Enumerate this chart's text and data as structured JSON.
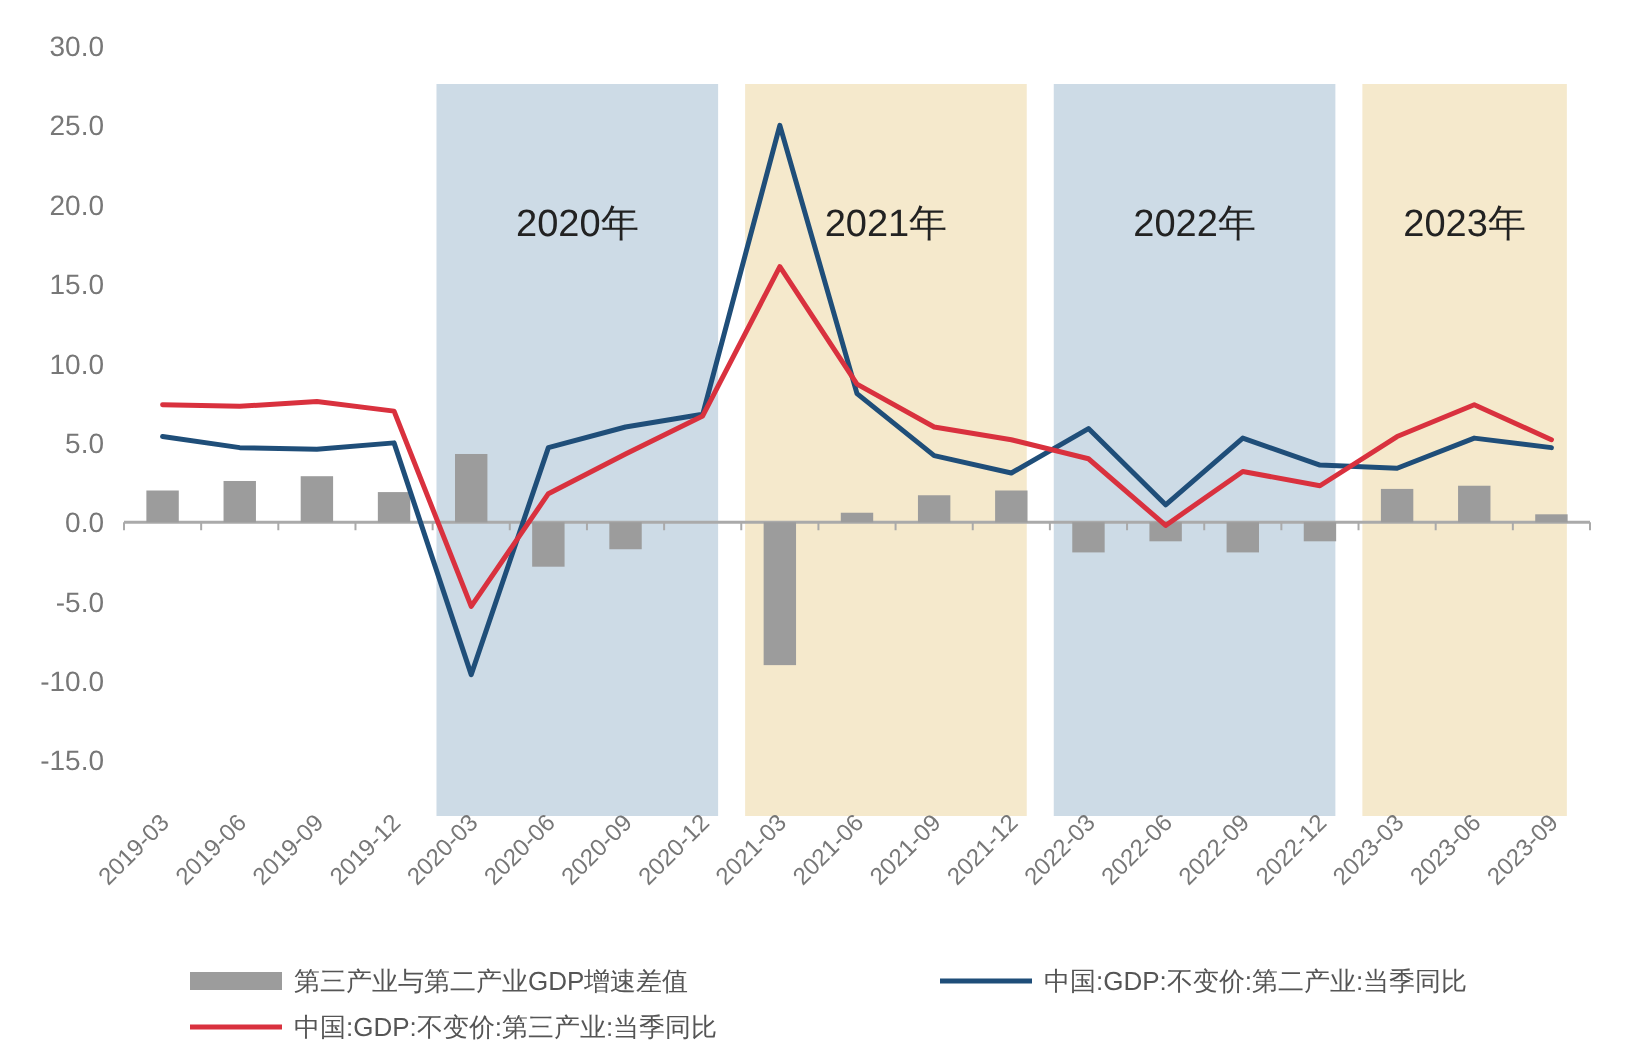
{
  "chart_data": {
    "type": "bar",
    "categories": [
      "2019-03",
      "2019-06",
      "2019-09",
      "2019-12",
      "2020-03",
      "2020-06",
      "2020-09",
      "2020-12",
      "2021-03",
      "2021-06",
      "2021-09",
      "2021-12",
      "2022-03",
      "2022-06",
      "2022-09",
      "2022-12",
      "2023-03",
      "2023-06",
      "2023-09"
    ],
    "series": [
      {
        "name": "第三产业与第二产业GDP增速差值",
        "color": "#9c9c9c",
        "values": [
          2.0,
          2.6,
          2.9,
          1.9,
          4.3,
          -2.8,
          -1.7,
          0.0,
          -9.0,
          0.6,
          1.7,
          2.0,
          -1.9,
          -1.2,
          -1.9,
          -1.2,
          2.1,
          2.3,
          0.5
        ]
      },
      {
        "name": "中国:GDP:不变价:第二产业:当季同比",
        "type": "line",
        "color": "#1f4e79",
        "values": [
          5.4,
          4.7,
          4.6,
          5.0,
          -9.6,
          4.7,
          6.0,
          6.8,
          25.0,
          8.1,
          4.2,
          3.1,
          5.9,
          1.1,
          5.3,
          3.6,
          3.4,
          5.3,
          4.7
        ]
      },
      {
        "name": "中国:GDP:不变价:第三产业:当季同比",
        "type": "line",
        "color": "#d9313e",
        "values": [
          7.4,
          7.3,
          7.6,
          7.0,
          -5.3,
          1.8,
          4.3,
          6.7,
          16.1,
          8.7,
          6.0,
          5.2,
          4.0,
          -0.2,
          3.2,
          2.3,
          5.4,
          7.4,
          5.2
        ]
      }
    ],
    "ylim": [
      -18,
      30
    ],
    "yticks": [
      {
        "value": -15,
        "label": "-15.0"
      },
      {
        "value": -10,
        "label": "-10.0"
      },
      {
        "value": -5,
        "label": "-5.0"
      },
      {
        "value": 0,
        "label": "0.0"
      },
      {
        "value": 5,
        "label": "5.0"
      },
      {
        "value": 10,
        "label": "10.0"
      },
      {
        "value": 15,
        "label": "15.0"
      },
      {
        "value": 20,
        "label": "20.0"
      },
      {
        "value": 25,
        "label": "25.0"
      },
      {
        "value": 30,
        "label": "30.0"
      }
    ],
    "bands": [
      {
        "axis": "x",
        "from": "2020-03",
        "to": "2020-12",
        "label": "2020年",
        "color": "#cddbe6"
      },
      {
        "axis": "x",
        "from": "2021-03",
        "to": "2021-12",
        "label": "2021年",
        "color": "#f5e9cc"
      },
      {
        "axis": "x",
        "from": "2022-03",
        "to": "2022-12",
        "label": "2022年",
        "color": "#cddbe6"
      },
      {
        "axis": "x",
        "from": "2023-03",
        "to": "2023-09",
        "label": "2023年",
        "color": "#f5e9cc"
      }
    ],
    "legend": "bottom"
  }
}
